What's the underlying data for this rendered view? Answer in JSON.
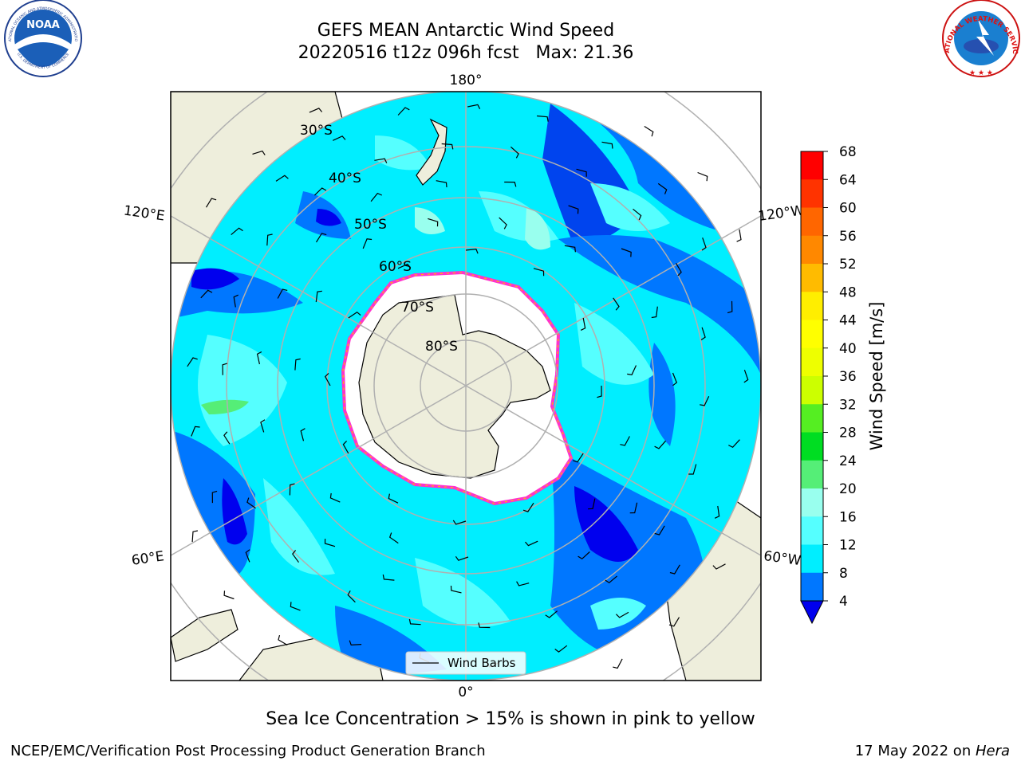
{
  "header": {
    "title": "GEFS MEAN Antarctic Wind Speed",
    "subtitle": "20220516 t12z 096h fcst   Max: 21.36"
  },
  "logos": {
    "noaa_text": "NOAA",
    "noaa_ring_top": "NATIONAL OCEANIC AND ATMOSPHERIC ADMINISTRATION",
    "noaa_ring_bottom": "U.S. DEPARTMENT OF COMMERCE",
    "nws_ring": "NATIONAL WEATHER SERVICE"
  },
  "map": {
    "longitude_labels": {
      "top": "180°",
      "bottom": "0°",
      "left_upper": "120°E",
      "left_lower": "60°E",
      "right_upper": "120°W",
      "right_lower": "60°W"
    },
    "latitude_labels": [
      "30°S",
      "40°S",
      "50°S",
      "60°S",
      "70°S",
      "80°S"
    ],
    "legend_label": "Wind Barbs"
  },
  "colorbar": {
    "label": "Wind Speed [m/s]",
    "ticks": [
      68,
      64,
      60,
      56,
      52,
      48,
      44,
      40,
      36,
      32,
      28,
      24,
      20,
      16,
      12,
      8,
      4
    ],
    "colors": [
      "#ff0000",
      "#ff3300",
      "#ff6600",
      "#ff8800",
      "#ffbb00",
      "#ffee00",
      "#ffff00",
      "#eeff00",
      "#ccff00",
      "#55ee22",
      "#00dd22",
      "#55ee77",
      "#99ffee",
      "#55ffff",
      "#00eeff",
      "#0077ff"
    ],
    "extend_color": "#0000ee"
  },
  "chart_data": {
    "type": "heatmap",
    "title": "GEFS MEAN Antarctic Wind Speed",
    "subtitle": "20220516 t12z 096h fcst   Max: 21.36",
    "max_value": 21.36,
    "units": "m/s",
    "levels": [
      4,
      8,
      12,
      16,
      20,
      24,
      28,
      32,
      36,
      40,
      44,
      48,
      52,
      56,
      60,
      64,
      68
    ]
  },
  "footer": {
    "note": "Sea Ice Concentration > 15% is shown in pink to yellow",
    "left": "NCEP/EMC/Verification Post Processing Product Generation Branch",
    "right_date": "17 May 2022 on ",
    "right_host": "Hera"
  }
}
